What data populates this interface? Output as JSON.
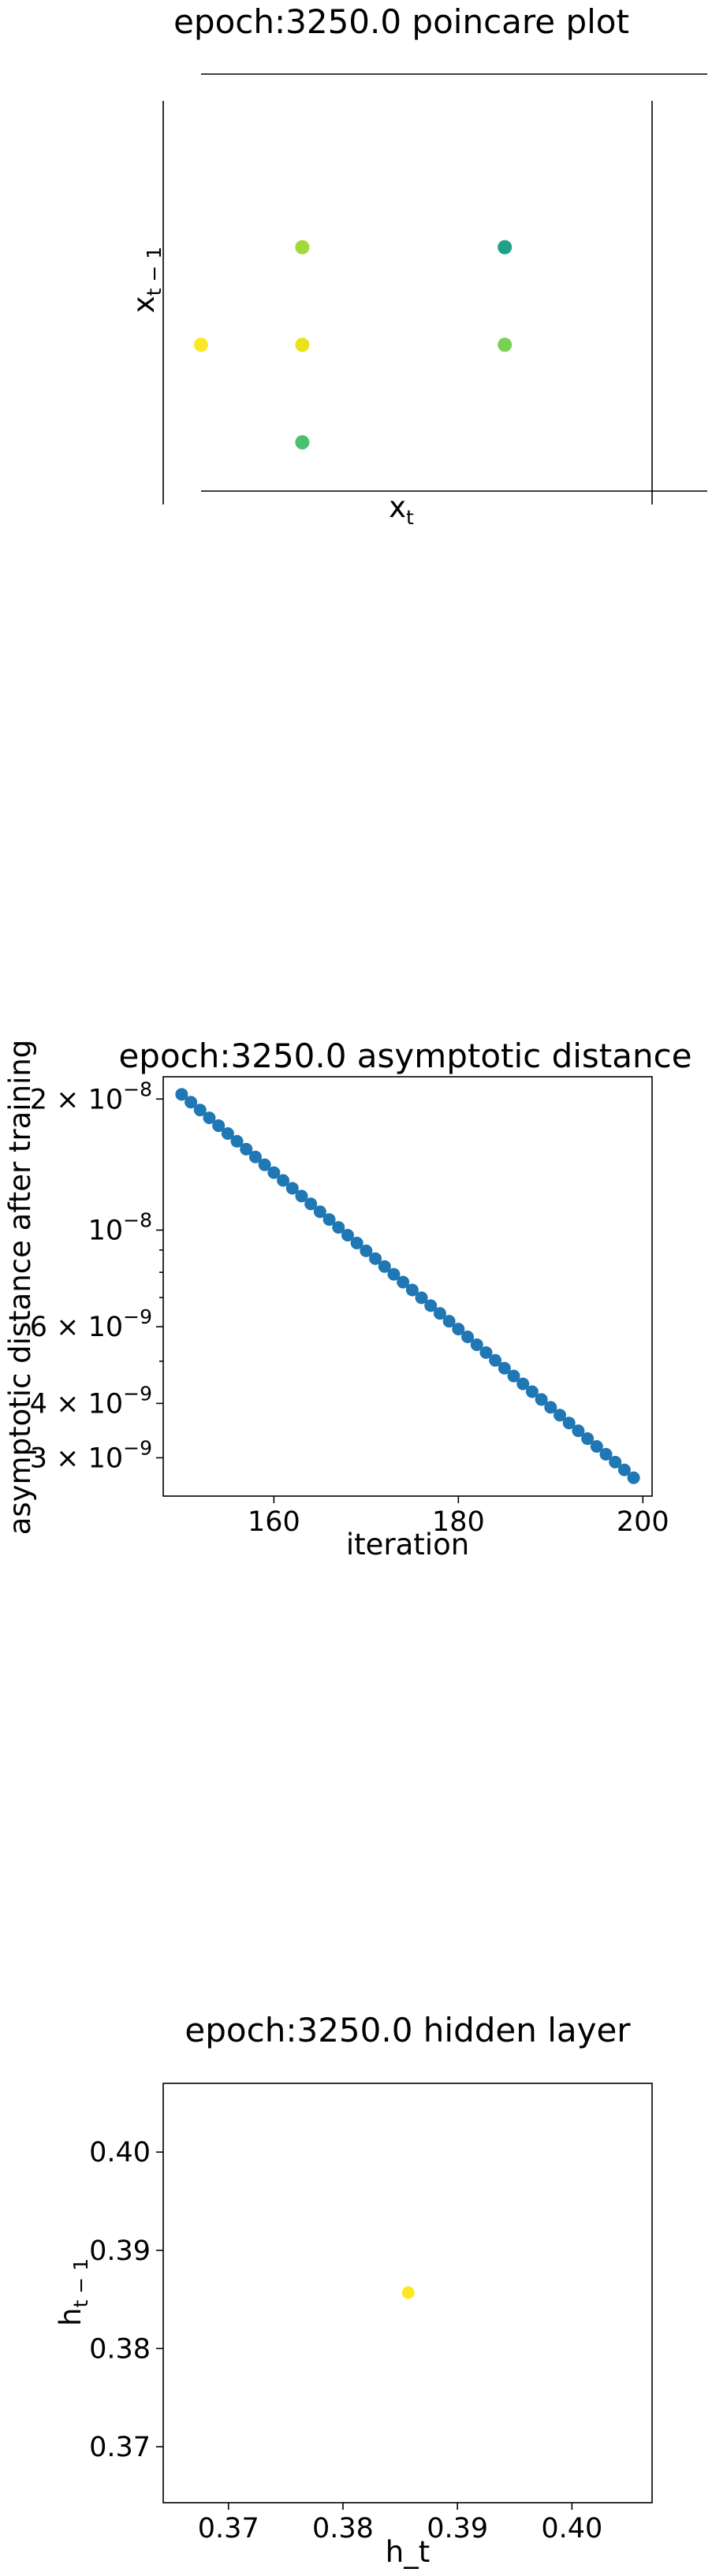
{
  "chart_data": [
    {
      "type": "scatter",
      "title": "epoch:3250.0 poincare plot",
      "xlabel_base": "x",
      "xlabel_sub": "t",
      "ylabel_base": "x",
      "ylabel_sub": "t − 1",
      "xlim": [
        0,
        5
      ],
      "ylim": [
        0,
        4
      ],
      "grid": false,
      "colormap": "viridis",
      "points": [
        {
          "x": 0,
          "y": 1.5,
          "color": "#fde725"
        },
        {
          "x": 1,
          "y": 1.5,
          "color": "#e7e419"
        },
        {
          "x": 1,
          "y": 2.5,
          "color": "#a0da39"
        },
        {
          "x": 1,
          "y": 0.5,
          "color": "#4ac16d"
        },
        {
          "x": 3,
          "y": 2.5,
          "color": "#1fa187"
        },
        {
          "x": 3,
          "y": 1.5,
          "color": "#7ad151"
        }
      ]
    },
    {
      "type": "scatter",
      "title": "epoch:3250.0 asymptotic distance",
      "xlabel": "iteration",
      "ylabel": "asymptotic distance after training",
      "yscale": "log",
      "xlim": [
        148,
        201
      ],
      "ylim": [
        2.45e-09,
        2.25e-08
      ],
      "color": "#1f77b4",
      "x_start": 150,
      "x_end": 199,
      "y_start": 2.05e-08,
      "y_end": 2.7e-09,
      "xticks": [
        "160",
        "180",
        "200"
      ],
      "yticks": [
        {
          "base": "2 × 10",
          "exp": "−8"
        },
        {
          "base": "10",
          "exp": "−8"
        },
        {
          "base": "6 × 10",
          "exp": "−9"
        },
        {
          "base": "4 × 10",
          "exp": "−9"
        },
        {
          "base": "3 × 10",
          "exp": "−9"
        }
      ],
      "grid": false
    },
    {
      "type": "scatter",
      "title": "epoch:3250.0 hidden layer",
      "xlabel": "h_t",
      "ylabel_base": "h",
      "ylabel_sub": "t − 1",
      "xlim": [
        0.3643,
        0.407
      ],
      "ylim": [
        0.3643,
        0.407
      ],
      "xticks": [
        "0.37",
        "0.38",
        "0.39",
        "0.40"
      ],
      "yticks": [
        "0.37",
        "0.38",
        "0.39",
        "0.40"
      ],
      "points": [
        {
          "x": 0.3857,
          "y": 0.3857,
          "color": "#fde725"
        }
      ],
      "grid": false
    }
  ]
}
